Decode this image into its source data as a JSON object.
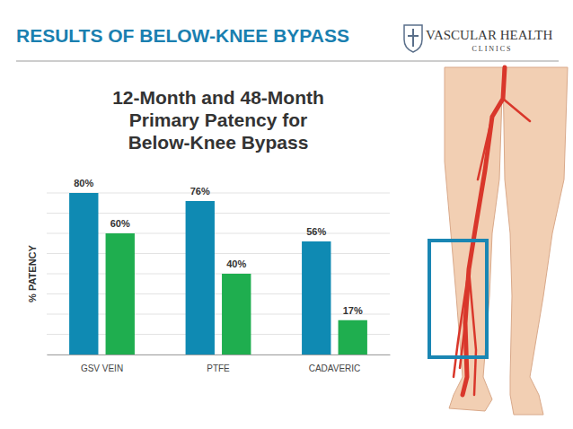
{
  "chart_data": {
    "type": "bar",
    "title": "12-Month and 48-Month Primary Patency for Below-Knee Bypass",
    "annotations": [
      "RESULTS OF BELOW-KNEE BYPASS",
      "VASCULAR HEALTH",
      "CLINICS"
    ],
    "ylabel": "% PATENCY",
    "categories": [
      "GSV VEIN",
      "PTFE",
      "CADAVERIC"
    ],
    "series": [
      {
        "color": "#0f8ab3",
        "values": [
          80,
          76,
          56
        ],
        "value_labels": [
          "80%",
          "76%",
          "56%"
        ]
      },
      {
        "color": "#1fae4f",
        "values": [
          60,
          40,
          17
        ],
        "value_labels": [
          "60%",
          "40%",
          "17%"
        ]
      }
    ],
    "ylim": [
      0,
      80
    ],
    "yticks": [
      0,
      10,
      20,
      30,
      40,
      50,
      60,
      70,
      80
    ],
    "grid": true,
    "data_labels": true,
    "tick_labels": "x"
  }
}
